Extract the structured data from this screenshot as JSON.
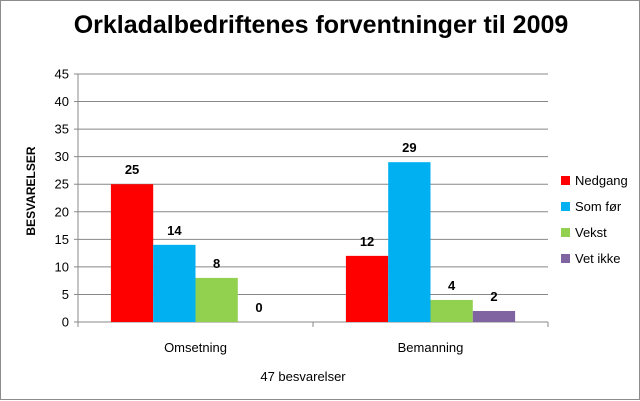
{
  "chart_data": {
    "type": "bar",
    "title": "Orkladalbedriftenes forventninger til 2009",
    "xlabel": "47 besvarelser",
    "ylabel": "BESVARELSER",
    "categories": [
      "Omsetning",
      "Bemanning"
    ],
    "series": [
      {
        "name": "Nedgang",
        "values": [
          25,
          12
        ],
        "color": "#ff0000"
      },
      {
        "name": "Som før",
        "values": [
          14,
          29
        ],
        "color": "#00b0f0"
      },
      {
        "name": "Vekst",
        "values": [
          8,
          4
        ],
        "color": "#92d050"
      },
      {
        "name": "Vet ikke",
        "values": [
          0,
          2
        ],
        "color": "#8064a2"
      }
    ],
    "ylim": [
      0,
      45
    ],
    "yticks": [
      "0",
      "5",
      "10",
      "15",
      "20",
      "25",
      "30",
      "35",
      "40",
      "45"
    ],
    "grid": true,
    "legend_position": "right"
  }
}
